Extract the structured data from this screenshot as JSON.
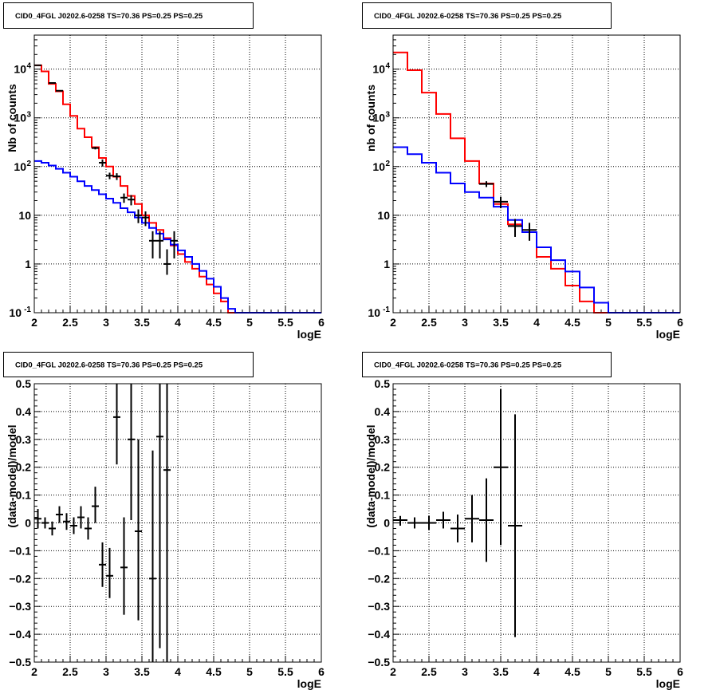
{
  "colors": {
    "model": "#ff0000",
    "background": "#0000ff",
    "data": "#000000"
  },
  "chart_data": [
    {
      "type": "histogram",
      "title": "CID0_4FGL J0202.6-0258 TS=70.36 PS=0.25 PS=0.25",
      "xlabel": "logE",
      "ylabel": "Nb of counts",
      "log_y": true,
      "xlim": [
        2,
        6
      ],
      "ylim": [
        0.1,
        50000
      ],
      "x_ticks": [
        "2",
        "2.5",
        "3",
        "3.5",
        "4",
        "4.5",
        "5",
        "5.5",
        "6"
      ],
      "y_ticks": [
        {
          "v": 0.1,
          "t": "10",
          "sup": "-1"
        },
        {
          "v": 1,
          "t": "1"
        },
        {
          "v": 10,
          "t": "10"
        },
        {
          "v": 100,
          "t": "10",
          "sup": "2"
        },
        {
          "v": 1000,
          "t": "10",
          "sup": "3"
        },
        {
          "v": 10000,
          "t": "10",
          "sup": "4"
        }
      ],
      "grid": true,
      "bin_edges": [
        2.0,
        2.1,
        2.2,
        2.3,
        2.4,
        2.5,
        2.6,
        2.7,
        2.8,
        2.9,
        3.0,
        3.1,
        3.2,
        3.3,
        3.4,
        3.5,
        3.6,
        3.7,
        3.8,
        3.9,
        4.0,
        4.1,
        4.2,
        4.3,
        4.4,
        4.5,
        4.6,
        4.7,
        4.8,
        4.9,
        5.0,
        5.1,
        5.2,
        5.3,
        5.4,
        5.5,
        5.6,
        5.7,
        5.8,
        5.9,
        6.0
      ],
      "series": [
        {
          "name": "model",
          "color": "#ff0000",
          "values": [
            12000,
            9000,
            5000,
            3500,
            1900,
            1100,
            600,
            400,
            250,
            150,
            100,
            62,
            40,
            25,
            17,
            10,
            7,
            5,
            3.4,
            2.4,
            1.6,
            1.1,
            0.8,
            0.55,
            0.38,
            0.25,
            0.17,
            0.1,
            0.1,
            0.1,
            0.1,
            0.1,
            0.1,
            0.1,
            0.1,
            0.1,
            0.1,
            0.1,
            0.1,
            0.1
          ]
        },
        {
          "name": "background",
          "color": "#0000ff",
          "values": [
            130,
            120,
            105,
            90,
            75,
            62,
            50,
            40,
            33,
            27,
            22,
            18,
            14,
            11.5,
            9,
            7,
            5.5,
            4.2,
            3.2,
            2.5,
            1.9,
            1.4,
            1.0,
            0.72,
            0.5,
            0.34,
            0.2,
            0.12,
            0.1,
            0.1,
            0.1,
            0.1,
            0.1,
            0.1,
            0.1,
            0.1,
            0.1,
            0.1,
            0.1,
            0.1
          ]
        }
      ],
      "data_points": [
        {
          "x": 2.05,
          "xerr": 0.05,
          "y": 12000,
          "ylo": 11800,
          "yhi": 12200
        },
        {
          "x": 2.25,
          "xerr": 0.05,
          "y": 5200,
          "ylo": 5100,
          "yhi": 5300
        },
        {
          "x": 2.35,
          "xerr": 0.05,
          "y": 3600,
          "ylo": 3500,
          "yhi": 3700
        },
        {
          "x": 2.85,
          "xerr": 0.05,
          "y": 240,
          "ylo": 225,
          "yhi": 255
        },
        {
          "x": 2.95,
          "xerr": 0.05,
          "y": 120,
          "ylo": 100,
          "yhi": 140
        },
        {
          "x": 3.05,
          "xerr": 0.05,
          "y": 65,
          "ylo": 55,
          "yhi": 75
        },
        {
          "x": 3.15,
          "xerr": 0.05,
          "y": 63,
          "ylo": 53,
          "yhi": 73
        },
        {
          "x": 3.25,
          "xerr": 0.05,
          "y": 23,
          "ylo": 18,
          "yhi": 28
        },
        {
          "x": 3.35,
          "xerr": 0.05,
          "y": 21,
          "ylo": 16,
          "yhi": 26
        },
        {
          "x": 3.45,
          "xerr": 0.05,
          "y": 10,
          "ylo": 6.9,
          "yhi": 13.2
        },
        {
          "x": 3.55,
          "xerr": 0.05,
          "y": 9,
          "ylo": 6,
          "yhi": 12
        },
        {
          "x": 3.65,
          "xerr": 0.05,
          "y": 3,
          "ylo": 1.3,
          "yhi": 4.7
        },
        {
          "x": 3.75,
          "xerr": 0.05,
          "y": 3,
          "ylo": 1.3,
          "yhi": 4.7
        },
        {
          "x": 3.85,
          "xerr": 0.05,
          "y": 1,
          "ylo": 0.6,
          "yhi": 2.0
        },
        {
          "x": 3.95,
          "xerr": 0.05,
          "y": 3,
          "ylo": 1.3,
          "yhi": 4.7
        }
      ]
    },
    {
      "type": "histogram",
      "title": "CID0_4FGL J0202.6-0258 TS=70.36 PS=0.25 PS=0.25",
      "xlabel": "logE",
      "ylabel": "nb of counts",
      "log_y": true,
      "xlim": [
        2,
        6
      ],
      "ylim": [
        0.1,
        50000
      ],
      "x_ticks": [
        "2",
        "2.5",
        "3",
        "3.5",
        "4",
        "4.5",
        "5",
        "5.5",
        "6"
      ],
      "y_ticks": [
        {
          "v": 0.1,
          "t": "10",
          "sup": "-1"
        },
        {
          "v": 1,
          "t": "1"
        },
        {
          "v": 10,
          "t": "10"
        },
        {
          "v": 100,
          "t": "10",
          "sup": "2"
        },
        {
          "v": 1000,
          "t": "10",
          "sup": "3"
        },
        {
          "v": 10000,
          "t": "10",
          "sup": "4"
        }
      ],
      "grid": true,
      "bin_edges": [
        2.0,
        2.2,
        2.4,
        2.6,
        2.8,
        3.0,
        3.2,
        3.4,
        3.6,
        3.8,
        4.0,
        4.2,
        4.4,
        4.6,
        4.8,
        5.0,
        5.2,
        5.4,
        5.6,
        5.8,
        6.0
      ],
      "series": [
        {
          "name": "model",
          "color": "#ff0000",
          "values": [
            22000,
            9500,
            3300,
            1200,
            380,
            130,
            45,
            17,
            6.5,
            4.5,
            1.4,
            0.8,
            0.36,
            0.17,
            0.1,
            0.1,
            0.1,
            0.1,
            0.1,
            0.1
          ]
        },
        {
          "name": "background",
          "color": "#0000ff",
          "values": [
            250,
            180,
            120,
            75,
            45,
            30,
            23,
            15,
            8,
            4.5,
            2.2,
            1.2,
            0.7,
            0.33,
            0.16,
            0.1,
            0.1,
            0.1,
            0.1,
            0.1
          ]
        }
      ],
      "data_points": [
        {
          "x": 3.3,
          "xerr": 0.1,
          "y": 44,
          "ylo": 38,
          "yhi": 50
        },
        {
          "x": 3.5,
          "xerr": 0.1,
          "y": 19,
          "ylo": 14,
          "yhi": 24
        },
        {
          "x": 3.7,
          "xerr": 0.1,
          "y": 6,
          "ylo": 3.6,
          "yhi": 8.4
        },
        {
          "x": 3.9,
          "xerr": 0.1,
          "y": 5,
          "ylo": 3,
          "yhi": 7
        }
      ]
    },
    {
      "type": "scatter",
      "title": "CID0_4FGL J0202.6-0258 TS=70.36 PS=0.25 PS=0.25",
      "xlabel": "logE",
      "ylabel": "(data-model)/model",
      "log_y": false,
      "xlim": [
        2,
        6
      ],
      "ylim": [
        -0.5,
        0.5
      ],
      "x_ticks": [
        "2",
        "2.5",
        "3",
        "3.5",
        "4",
        "4.5",
        "5",
        "5.5",
        "6"
      ],
      "y_ticks": [
        {
          "v": -0.5,
          "t": "−0.5"
        },
        {
          "v": -0.4,
          "t": "−0.4"
        },
        {
          "v": -0.3,
          "t": "−0.3"
        },
        {
          "v": -0.2,
          "t": "−0.2"
        },
        {
          "v": -0.1,
          "t": "−0.1"
        },
        {
          "v": 0,
          "t": "0"
        },
        {
          "v": 0.1,
          "t": "0.1"
        },
        {
          "v": 0.2,
          "t": "0.2"
        },
        {
          "v": 0.3,
          "t": "0.3"
        },
        {
          "v": 0.4,
          "t": "0.4"
        },
        {
          "v": 0.5,
          "t": "0.5"
        }
      ],
      "grid": true,
      "data_points": [
        {
          "x": 2.05,
          "xerr": 0.05,
          "y": 0.015,
          "ylo": -0.02,
          "yhi": 0.05
        },
        {
          "x": 2.15,
          "xerr": 0.05,
          "y": 0.0,
          "ylo": -0.02,
          "yhi": 0.02
        },
        {
          "x": 2.25,
          "xerr": 0.05,
          "y": -0.02,
          "ylo": -0.045,
          "yhi": 0.005
        },
        {
          "x": 2.35,
          "xerr": 0.05,
          "y": 0.03,
          "ylo": 0.0,
          "yhi": 0.06
        },
        {
          "x": 2.45,
          "xerr": 0.05,
          "y": 0.005,
          "ylo": -0.025,
          "yhi": 0.035
        },
        {
          "x": 2.55,
          "xerr": 0.05,
          "y": -0.01,
          "ylo": -0.04,
          "yhi": 0.02
        },
        {
          "x": 2.65,
          "xerr": 0.05,
          "y": 0.02,
          "ylo": -0.02,
          "yhi": 0.06
        },
        {
          "x": 2.75,
          "xerr": 0.05,
          "y": -0.02,
          "ylo": -0.06,
          "yhi": 0.02
        },
        {
          "x": 2.85,
          "xerr": 0.05,
          "y": 0.06,
          "ylo": 0.0,
          "yhi": 0.13
        },
        {
          "x": 2.95,
          "xerr": 0.05,
          "y": -0.15,
          "ylo": -0.23,
          "yhi": -0.07
        },
        {
          "x": 3.05,
          "xerr": 0.05,
          "y": -0.19,
          "ylo": -0.27,
          "yhi": -0.09
        },
        {
          "x": 3.15,
          "xerr": 0.05,
          "y": 0.38,
          "ylo": 0.21,
          "yhi": 0.5
        },
        {
          "x": 3.25,
          "xerr": 0.05,
          "y": -0.16,
          "ylo": -0.33,
          "yhi": 0.02
        },
        {
          "x": 3.35,
          "xerr": 0.05,
          "y": 0.3,
          "ylo": 0.01,
          "yhi": 0.5
        },
        {
          "x": 3.45,
          "xerr": 0.05,
          "y": -0.03,
          "ylo": -0.35,
          "yhi": 0.3
        },
        {
          "x": 3.65,
          "xerr": 0.05,
          "y": -0.2,
          "ylo": -0.5,
          "yhi": 0.26
        },
        {
          "x": 3.75,
          "xerr": 0.05,
          "y": 0.31,
          "ylo": -0.45,
          "yhi": 0.5
        },
        {
          "x": 3.85,
          "xerr": 0.05,
          "y": 0.19,
          "ylo": -0.5,
          "yhi": 0.5
        }
      ]
    },
    {
      "type": "scatter",
      "title": "CID0_4FGL J0202.6-0258 TS=70.36 PS=0.25 PS=0.25",
      "xlabel": "logE",
      "ylabel": "(data-model)/model",
      "log_y": false,
      "xlim": [
        2,
        6
      ],
      "ylim": [
        -0.5,
        0.5
      ],
      "x_ticks": [
        "2",
        "2.5",
        "3",
        "3.5",
        "4",
        "4.5",
        "5",
        "5.5",
        "6"
      ],
      "y_ticks": [
        {
          "v": -0.5,
          "t": "−0.5"
        },
        {
          "v": -0.4,
          "t": "−0.4"
        },
        {
          "v": -0.3,
          "t": "−0.3"
        },
        {
          "v": -0.2,
          "t": "−0.2"
        },
        {
          "v": -0.1,
          "t": "−0.1"
        },
        {
          "v": 0,
          "t": "0"
        },
        {
          "v": 0.1,
          "t": "0.1"
        },
        {
          "v": 0.2,
          "t": "0.2"
        },
        {
          "v": 0.3,
          "t": "0.3"
        },
        {
          "v": 0.4,
          "t": "0.4"
        },
        {
          "v": 0.5,
          "t": "0.5"
        }
      ],
      "grid": true,
      "data_points": [
        {
          "x": 2.1,
          "xerr": 0.1,
          "y": 0.01,
          "ylo": -0.01,
          "yhi": 0.025
        },
        {
          "x": 2.3,
          "xerr": 0.1,
          "y": 0.0,
          "ylo": -0.02,
          "yhi": 0.02
        },
        {
          "x": 2.5,
          "xerr": 0.1,
          "y": 0.0,
          "ylo": -0.025,
          "yhi": 0.025
        },
        {
          "x": 2.7,
          "xerr": 0.1,
          "y": 0.01,
          "ylo": -0.02,
          "yhi": 0.04
        },
        {
          "x": 2.9,
          "xerr": 0.1,
          "y": -0.02,
          "ylo": -0.07,
          "yhi": 0.03
        },
        {
          "x": 3.1,
          "xerr": 0.1,
          "y": 0.015,
          "ylo": -0.07,
          "yhi": 0.1
        },
        {
          "x": 3.3,
          "xerr": 0.1,
          "y": 0.01,
          "ylo": -0.14,
          "yhi": 0.16
        },
        {
          "x": 3.5,
          "xerr": 0.1,
          "y": 0.2,
          "ylo": -0.08,
          "yhi": 0.48
        },
        {
          "x": 3.7,
          "xerr": 0.1,
          "y": -0.01,
          "ylo": -0.41,
          "yhi": 0.39
        }
      ]
    }
  ]
}
